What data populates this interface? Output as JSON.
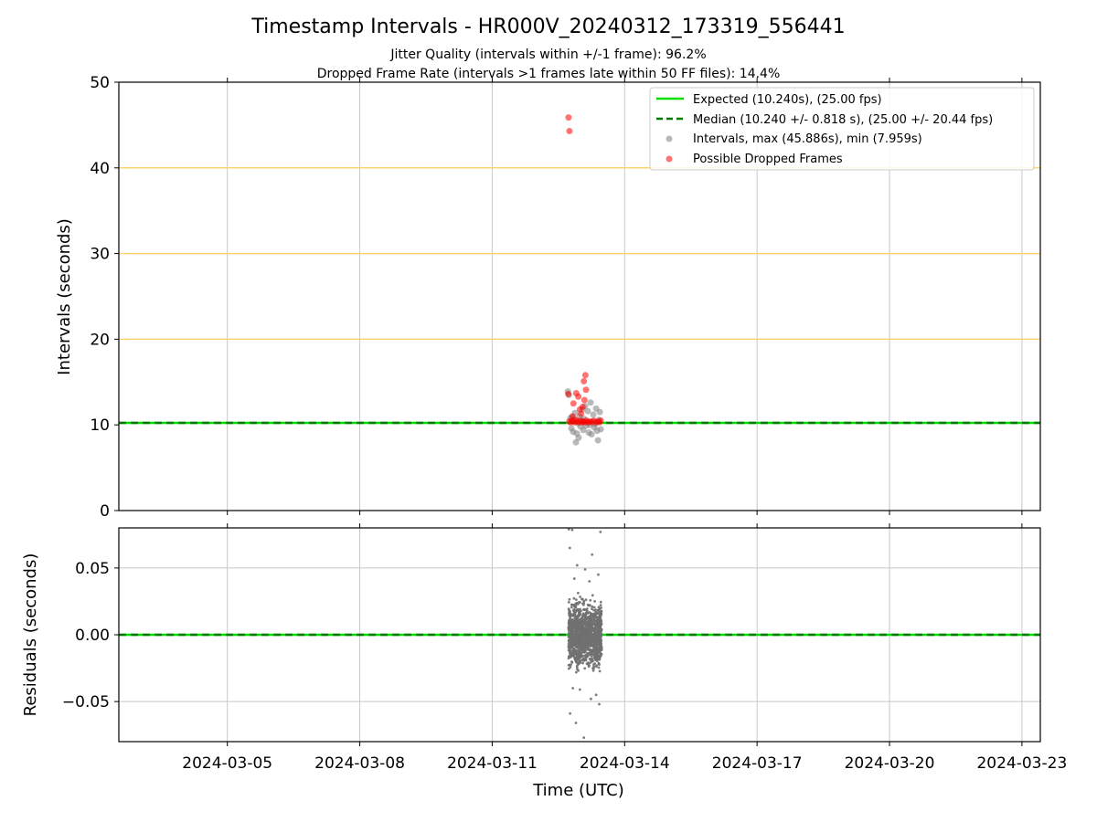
{
  "chart_data": {
    "title": "Timestamp Intervals - HR000V_20240312_173319_556441",
    "subtitle_lines": [
      "Jitter Quality (intervals within +/-1 frame): 96.2%",
      "Dropped Frame Rate (intervals >1 frames late within 50 FF files): 14.4%"
    ],
    "xlabel": "Time (UTC)",
    "x_ticks": [
      "2024-03-05",
      "2024-03-08",
      "2024-03-11",
      "2024-03-14",
      "2024-03-17",
      "2024-03-20",
      "2024-03-23"
    ],
    "xlim": [
      "2024-03-02T13:00",
      "2024-03-23T10:00"
    ],
    "grid": true,
    "panels": [
      {
        "type": "scatter",
        "ylabel": "Intervals (seconds)",
        "ylim": [
          0,
          50
        ],
        "y_ticks": [
          "0",
          "10",
          "20",
          "30",
          "40",
          "50"
        ],
        "y_tick_values": [
          0,
          10,
          20,
          30,
          40,
          50
        ],
        "hlines_orange": [
          20,
          30,
          40
        ],
        "legend_placement": "top-right",
        "legend": [
          "Expected (10.240s), (25.00 fps)",
          "Median (10.240 +/- 0.818 s), (25.00 +/- 20.44 fps)",
          "Intervals, max (45.886s), min (7.959s)",
          "Possible Dropped Frames"
        ],
        "series": [
          {
            "kind": "line",
            "value": 10.24,
            "color": "#00e000",
            "style": "solid"
          },
          {
            "kind": "line",
            "value": 10.24,
            "color": "#007a00",
            "style": "dashed"
          },
          {
            "kind": "scatter",
            "color": "#808080",
            "points": [
              [
                "2024-03-12T17:10",
                13.9
              ],
              [
                "2024-03-12T17:40",
                13.5
              ],
              [
                "2024-03-12T18:30",
                10.8
              ],
              [
                "2024-03-12T19:00",
                9.6
              ],
              [
                "2024-03-12T19:30",
                10.9
              ],
              [
                "2024-03-12T20:00",
                9.2
              ],
              [
                "2024-03-12T20:30",
                10.6
              ],
              [
                "2024-03-12T21:00",
                11.4
              ],
              [
                "2024-03-12T21:30",
                7.96
              ],
              [
                "2024-03-12T22:00",
                9.0
              ],
              [
                "2024-03-12T22:30",
                10.2
              ],
              [
                "2024-03-12T23:00",
                8.5
              ],
              [
                "2024-03-12T23:30",
                11.0
              ],
              [
                "2024-03-13T00:00",
                9.8
              ],
              [
                "2024-03-13T00:30",
                10.5
              ],
              [
                "2024-03-13T01:00",
                11.8
              ],
              [
                "2024-03-13T01:30",
                9.4
              ],
              [
                "2024-03-13T02:00",
                10.7
              ],
              [
                "2024-03-13T02:30",
                12.2
              ],
              [
                "2024-03-13T03:00",
                9.9
              ],
              [
                "2024-03-13T03:30",
                10.3
              ],
              [
                "2024-03-13T04:00",
                11.6
              ],
              [
                "2024-03-13T04:30",
                9.1
              ],
              [
                "2024-03-13T05:00",
                10.0
              ],
              [
                "2024-03-13T05:30",
                12.6
              ],
              [
                "2024-03-13T06:00",
                8.9
              ],
              [
                "2024-03-13T06:30",
                10.4
              ],
              [
                "2024-03-13T07:00",
                11.2
              ],
              [
                "2024-03-13T07:30",
                9.7
              ],
              [
                "2024-03-13T08:00",
                10.1
              ],
              [
                "2024-03-13T08:30",
                11.9
              ],
              [
                "2024-03-13T09:00",
                9.3
              ],
              [
                "2024-03-13T09:30",
                8.2
              ],
              [
                "2024-03-13T10:00",
                10.6
              ],
              [
                "2024-03-13T10:30",
                11.5
              ],
              [
                "2024-03-13T11:00",
                9.5
              ]
            ]
          },
          {
            "kind": "scatter",
            "color": "#ff0000",
            "points": [
              [
                "2024-03-12T17:30",
                45.886
              ],
              [
                "2024-03-12T18:00",
                44.3
              ],
              [
                "2024-03-12T17:20",
                13.6
              ],
              [
                "2024-03-12T20:10",
                12.5
              ],
              [
                "2024-03-12T21:40",
                13.7
              ],
              [
                "2024-03-12T22:50",
                13.3
              ],
              [
                "2024-03-12T23:40",
                11.8
              ],
              [
                "2024-03-13T01:50",
                15.1
              ],
              [
                "2024-03-13T02:10",
                12.9
              ],
              [
                "2024-03-13T02:40",
                15.8
              ],
              [
                "2024-03-13T03:00",
                14.1
              ],
              [
                "2024-03-13T00:20",
                11.3
              ],
              [
                "2024-03-12T19:40",
                11.0
              ],
              [
                "2024-03-13T01:10",
                12.1
              ],
              [
                "2024-03-12T17:50",
                10.4
              ],
              [
                "2024-03-12T18:40",
                10.3
              ],
              [
                "2024-03-12T19:20",
                10.5
              ],
              [
                "2024-03-12T20:40",
                10.3
              ],
              [
                "2024-03-12T21:20",
                10.6
              ],
              [
                "2024-03-12T22:10",
                10.4
              ],
              [
                "2024-03-12T23:10",
                10.3
              ],
              [
                "2024-03-13T00:00",
                10.5
              ],
              [
                "2024-03-13T00:50",
                10.3
              ],
              [
                "2024-03-13T01:30",
                10.4
              ],
              [
                "2024-03-13T02:20",
                10.3
              ],
              [
                "2024-03-13T03:20",
                10.5
              ],
              [
                "2024-03-13T04:10",
                10.3
              ],
              [
                "2024-03-13T05:00",
                10.4
              ],
              [
                "2024-03-13T06:00",
                10.3
              ],
              [
                "2024-03-13T07:10",
                10.5
              ],
              [
                "2024-03-13T08:20",
                10.3
              ],
              [
                "2024-03-13T09:30",
                10.4
              ],
              [
                "2024-03-13T10:20",
                10.3
              ],
              [
                "2024-03-13T11:00",
                10.5
              ]
            ]
          }
        ]
      },
      {
        "type": "scatter",
        "ylabel": "Residuals (seconds)",
        "ylim": [
          -0.08,
          0.08
        ],
        "y_ticks": [
          "0.05",
          "0.00",
          "−0.05"
        ],
        "y_tick_values": [
          0.05,
          0.0,
          -0.05
        ],
        "series": [
          {
            "kind": "line",
            "value": 0.0,
            "color": "#00e000",
            "style": "solid"
          },
          {
            "kind": "line",
            "value": 0.0,
            "color": "#007a00",
            "style": "dashed"
          },
          {
            "kind": "scatter",
            "color": "#707070",
            "time_range": [
              "2024-03-12T17:30",
              "2024-03-13T11:30"
            ],
            "core_range": [
              -0.035,
              0.032
            ],
            "outliers": [
              [
                "2024-03-12T17:40",
                0.079
              ],
              [
                "2024-03-12T19:30",
                0.0785
              ],
              [
                "2024-03-13T10:50",
                0.077
              ],
              [
                "2024-03-12T18:10",
                0.065
              ],
              [
                "2024-03-13T06:20",
                0.06
              ],
              [
                "2024-03-12T22:10",
                0.052
              ],
              [
                "2024-03-13T02:30",
                0.049
              ],
              [
                "2024-03-13T09:40",
                0.045
              ],
              [
                "2024-03-12T20:40",
                0.042
              ],
              [
                "2024-03-13T04:50",
                0.04
              ],
              [
                "2024-03-12T18:20",
                -0.059
              ],
              [
                "2024-03-12T21:30",
                -0.066
              ],
              [
                "2024-03-13T01:50",
                -0.077
              ],
              [
                "2024-03-13T10:10",
                -0.052
              ],
              [
                "2024-03-13T08:30",
                -0.045
              ],
              [
                "2024-03-12T23:40",
                -0.041
              ],
              [
                "2024-03-13T05:40",
                -0.048
              ],
              [
                "2024-03-12T19:50",
                -0.04
              ]
            ]
          }
        ]
      }
    ]
  }
}
